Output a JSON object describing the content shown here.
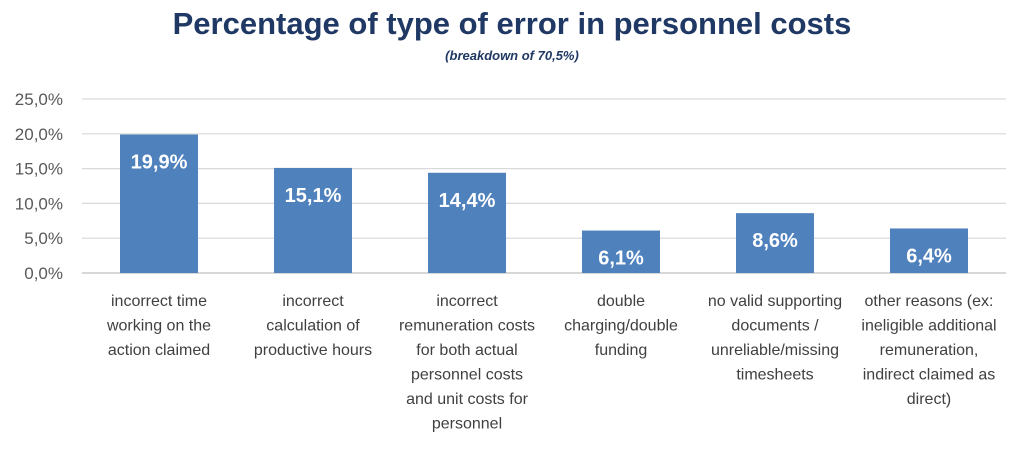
{
  "chart_data": {
    "type": "bar",
    "title": "Percentage of type of error in personnel costs",
    "subtitle": "(breakdown of 70,5%)",
    "xlabel": "",
    "ylabel": "",
    "ylim": [
      0,
      25
    ],
    "yticks": [
      "0,0%",
      "5,0%",
      "10,0%",
      "15,0%",
      "20,0%",
      "25,0%"
    ],
    "grid": true,
    "legend": "none",
    "categories": [
      [
        "incorrect time",
        "working on the",
        "action claimed"
      ],
      [
        "incorrect",
        "calculation of",
        "productive hours"
      ],
      [
        "incorrect",
        "remuneration costs",
        "for both actual",
        "personnel costs",
        "and unit costs for",
        "personnel"
      ],
      [
        "double",
        "charging/double",
        "funding"
      ],
      [
        "no valid supporting",
        "documents /",
        "unreliable/missing",
        "timesheets"
      ],
      [
        "other reasons (ex:",
        "ineligible additional",
        "remuneration,",
        "indirect claimed as",
        "direct)"
      ]
    ],
    "values": [
      19.9,
      15.1,
      14.4,
      6.1,
      8.6,
      6.4
    ],
    "data_labels": [
      "19,9%",
      "15,1%",
      "14,4%",
      "6,1%",
      "8,6%",
      "6,4%"
    ],
    "colors": {
      "bar": "#4f81bd",
      "grid": "#d9d9d9",
      "axis": "#bfbfbf",
      "title": "#1f3864"
    }
  }
}
